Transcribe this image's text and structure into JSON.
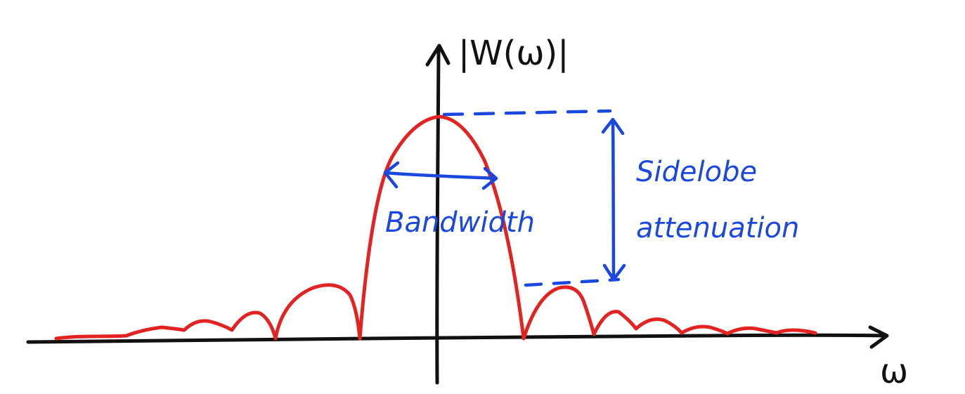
{
  "labels": {
    "y_axis": "|W(ω)|",
    "x_axis": "ω",
    "bandwidth": "Bandwidth",
    "sidelobe_line1": "Sidelobe",
    "sidelobe_line2": "attenuation"
  },
  "colors": {
    "axes": "#111111",
    "curve": "#e32222",
    "annotation": "#1a47e0",
    "background": "#ffffff"
  }
}
